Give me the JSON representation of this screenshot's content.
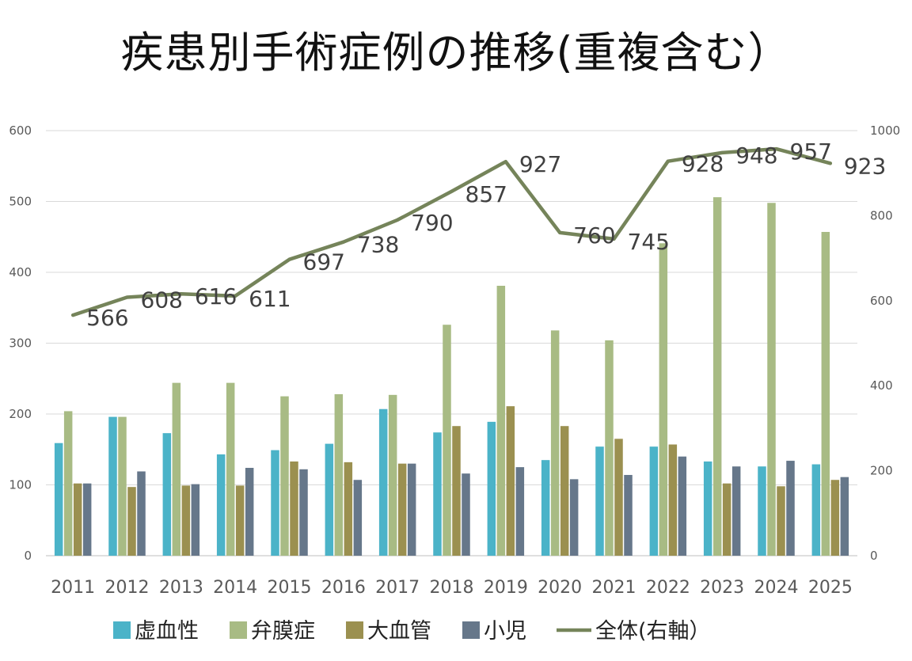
{
  "chart_data": {
    "type": "bar",
    "title": "疾患別手術症例の推移(重複含む）",
    "categories": [
      "2011",
      "2012",
      "2013",
      "2014",
      "2015",
      "2016",
      "2017",
      "2018",
      "2019",
      "2020",
      "2021",
      "2022",
      "2023",
      "2024",
      "2025"
    ],
    "series": [
      {
        "name": "虚血性",
        "type": "bar",
        "axis": "left",
        "color": "#4bb3c8",
        "values": [
          159,
          196,
          173,
          143,
          149,
          158,
          207,
          174,
          189,
          135,
          154,
          154,
          133,
          126,
          129
        ]
      },
      {
        "name": "弁膜症",
        "type": "bar",
        "axis": "left",
        "color": "#a8bb84",
        "values": [
          204,
          196,
          244,
          244,
          225,
          228,
          227,
          326,
          381,
          318,
          304,
          441,
          506,
          498,
          457
        ]
      },
      {
        "name": "大血管",
        "type": "bar",
        "axis": "left",
        "color": "#9b9050",
        "values": [
          102,
          97,
          99,
          99,
          133,
          132,
          130,
          183,
          211,
          183,
          165,
          157,
          102,
          98,
          107
        ]
      },
      {
        "name": "小児",
        "type": "bar",
        "axis": "left",
        "color": "#66778a",
        "values": [
          102,
          119,
          101,
          124,
          122,
          107,
          130,
          116,
          125,
          108,
          114,
          140,
          126,
          134,
          111
        ]
      },
      {
        "name": "全体(右軸）",
        "type": "line",
        "axis": "right",
        "color": "#75845a",
        "values": [
          566,
          608,
          616,
          611,
          697,
          738,
          790,
          857,
          927,
          760,
          745,
          928,
          948,
          957,
          923
        ]
      }
    ],
    "ylim_left": [
      0,
      600
    ],
    "ylim_right": [
      0,
      1000
    ],
    "yticks_left": [
      "0",
      "100",
      "200",
      "300",
      "400",
      "500",
      "600"
    ],
    "yticks_right": [
      "0",
      "200",
      "400",
      "600",
      "800",
      "1000"
    ],
    "grid": true,
    "legend_position": "bottom"
  }
}
